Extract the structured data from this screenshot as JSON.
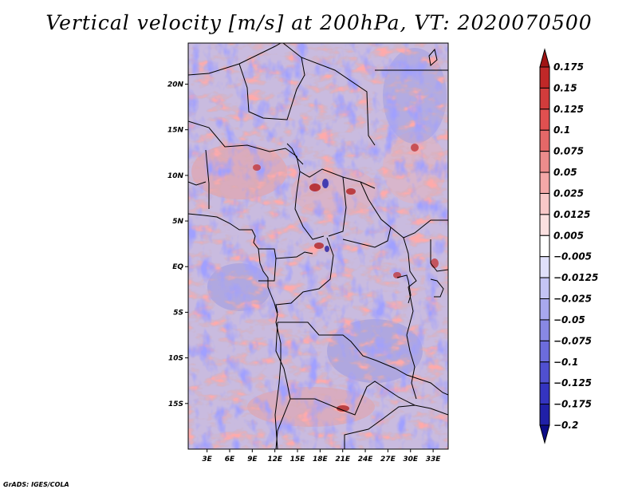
{
  "title": "Vertical velocity [m/s] at 200hPa, VT: 2020070500",
  "credit": "GrADS: IGES/COLA",
  "chart_data": {
    "type": "heatmap",
    "variable": "Vertical velocity",
    "units": "m/s",
    "level": "200hPa",
    "valid_time": "2020070500",
    "projection": "latlon",
    "lon_range": [
      0.5,
      35
    ],
    "lat_range": [
      -20,
      24.5
    ],
    "xticks": [
      {
        "value": 3,
        "label": "3E"
      },
      {
        "value": 6,
        "label": "6E"
      },
      {
        "value": 9,
        "label": "9E"
      },
      {
        "value": 12,
        "label": "12E"
      },
      {
        "value": 15,
        "label": "15E"
      },
      {
        "value": 18,
        "label": "18E"
      },
      {
        "value": 21,
        "label": "21E"
      },
      {
        "value": 24,
        "label": "24E"
      },
      {
        "value": 27,
        "label": "27E"
      },
      {
        "value": 30,
        "label": "30E"
      },
      {
        "value": 33,
        "label": "33E"
      }
    ],
    "yticks": [
      {
        "value": 20,
        "label": "20N"
      },
      {
        "value": 15,
        "label": "15N"
      },
      {
        "value": 10,
        "label": "10N"
      },
      {
        "value": 5,
        "label": "5N"
      },
      {
        "value": 0,
        "label": "EQ"
      },
      {
        "value": -5,
        "label": "5S"
      },
      {
        "value": -10,
        "label": "10S"
      },
      {
        "value": -15,
        "label": "15S"
      }
    ],
    "colorbar": {
      "labels": [
        "0.175",
        "0.15",
        "0.125",
        "0.1",
        "0.075",
        "0.05",
        "0.025",
        "0.0125",
        "0.005",
        "−0.005",
        "−0.0125",
        "−0.025",
        "−0.05",
        "−0.075",
        "−0.1",
        "−0.125",
        "−0.175",
        "−0.2"
      ],
      "colors": [
        "#a01414",
        "#c02828",
        "#d23c3c",
        "#e05050",
        "#e46868",
        "#ec8c8c",
        "#f4a8a8",
        "#f8c8c8",
        "#fbe0e0",
        "#ffffff",
        "#e0e0fa",
        "#c4c4f4",
        "#a8a8ee",
        "#8888e4",
        "#6c6cdc",
        "#5050d0",
        "#3434c0",
        "#2020a8",
        "#0c0c88"
      ],
      "orientation": "vertical",
      "placement": "right"
    },
    "features": [
      "coastlines",
      "country borders"
    ]
  }
}
